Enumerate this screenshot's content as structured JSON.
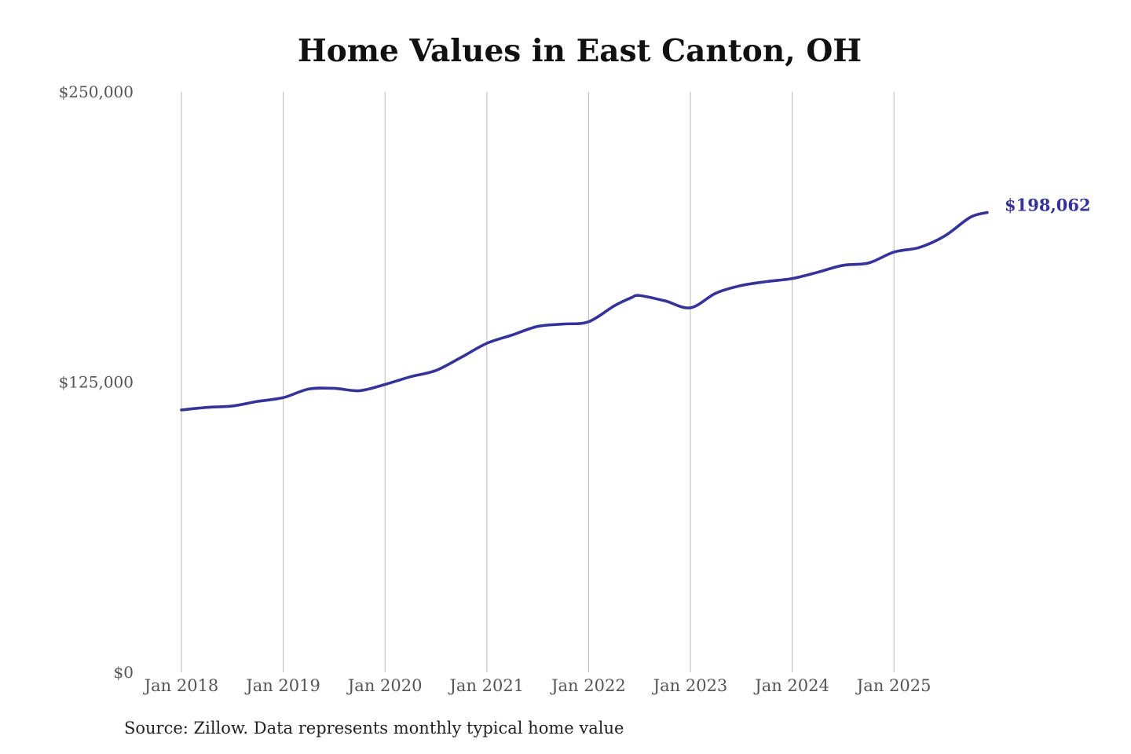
{
  "chart_data": {
    "type": "line",
    "title": "Home Values in East Canton, OH",
    "xlabel": "",
    "ylabel": "",
    "ylim": [
      0,
      250000
    ],
    "y_ticks": [
      {
        "value": 0,
        "label": "$0"
      },
      {
        "value": 125000,
        "label": "$125,000"
      },
      {
        "value": 250000,
        "label": "$250,000"
      }
    ],
    "x_ticks": [
      {
        "date": "2018-01",
        "label": "Jan 2018"
      },
      {
        "date": "2019-01",
        "label": "Jan 2019"
      },
      {
        "date": "2020-01",
        "label": "Jan 2020"
      },
      {
        "date": "2021-01",
        "label": "Jan 2021"
      },
      {
        "date": "2022-01",
        "label": "Jan 2022"
      },
      {
        "date": "2023-01",
        "label": "Jan 2023"
      },
      {
        "date": "2024-01",
        "label": "Jan 2024"
      },
      {
        "date": "2025-01",
        "label": "Jan 2025"
      }
    ],
    "grid": "vertical",
    "series": [
      {
        "color": "#35329a",
        "points": [
          {
            "x": "2018-01",
            "y": 113000
          },
          {
            "x": "2018-04",
            "y": 114100
          },
          {
            "x": "2018-07",
            "y": 114700
          },
          {
            "x": "2018-10",
            "y": 116700
          },
          {
            "x": "2019-01",
            "y": 118300
          },
          {
            "x": "2019-04",
            "y": 122000
          },
          {
            "x": "2019-07",
            "y": 122300
          },
          {
            "x": "2019-10",
            "y": 121300
          },
          {
            "x": "2020-01",
            "y": 124000
          },
          {
            "x": "2020-04",
            "y": 127300
          },
          {
            "x": "2020-07",
            "y": 130000
          },
          {
            "x": "2020-10",
            "y": 135700
          },
          {
            "x": "2021-01",
            "y": 141700
          },
          {
            "x": "2021-04",
            "y": 145300
          },
          {
            "x": "2021-07",
            "y": 149000
          },
          {
            "x": "2021-10",
            "y": 150000
          },
          {
            "x": "2022-01",
            "y": 151000
          },
          {
            "x": "2022-04",
            "y": 157800
          },
          {
            "x": "2022-06",
            "y": 161300
          },
          {
            "x": "2022-07",
            "y": 162300
          },
          {
            "x": "2022-10",
            "y": 160000
          },
          {
            "x": "2023-01",
            "y": 157000
          },
          {
            "x": "2023-04",
            "y": 163300
          },
          {
            "x": "2023-07",
            "y": 166600
          },
          {
            "x": "2023-10",
            "y": 168300
          },
          {
            "x": "2024-01",
            "y": 169600
          },
          {
            "x": "2024-04",
            "y": 172300
          },
          {
            "x": "2024-07",
            "y": 175300
          },
          {
            "x": "2024-10",
            "y": 176300
          },
          {
            "x": "2025-01",
            "y": 181000
          },
          {
            "x": "2025-04",
            "y": 183000
          },
          {
            "x": "2025-07",
            "y": 188000
          },
          {
            "x": "2025-10",
            "y": 196000
          },
          {
            "x": "2025-12",
            "y": 198062
          }
        ]
      }
    ],
    "annotations": [
      {
        "text": "$198,062",
        "at": "last-point",
        "color": "#35329a"
      }
    ],
    "source": "Source: Zillow. Data represents monthly typical home value"
  }
}
